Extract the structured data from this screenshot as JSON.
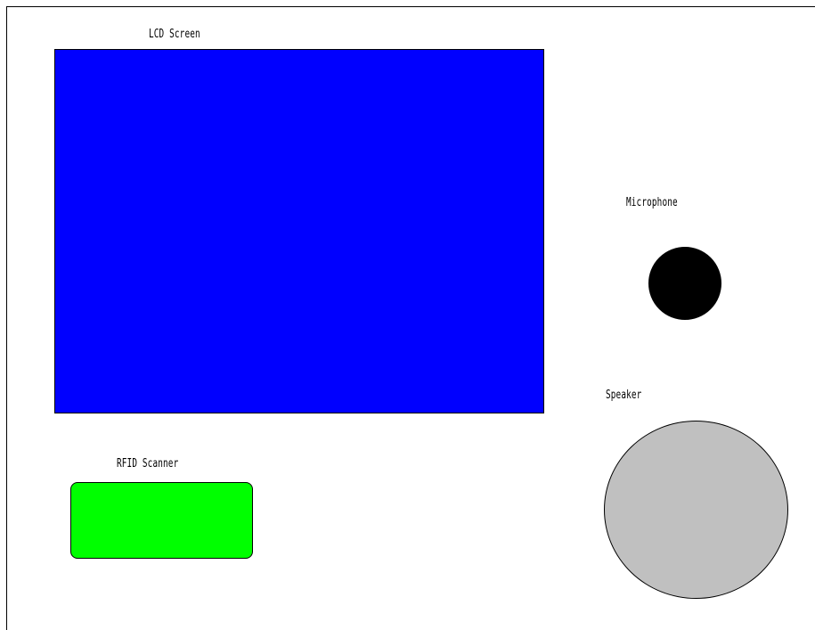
{
  "components": {
    "lcd": {
      "label": "LCD Screen",
      "color": "#0000ff"
    },
    "microphone": {
      "label": "Microphone",
      "color": "#000000"
    },
    "speaker": {
      "label": "Speaker",
      "color": "#c0c0c0"
    },
    "rfid": {
      "label": "RFID Scanner",
      "color": "#00ff00"
    }
  }
}
